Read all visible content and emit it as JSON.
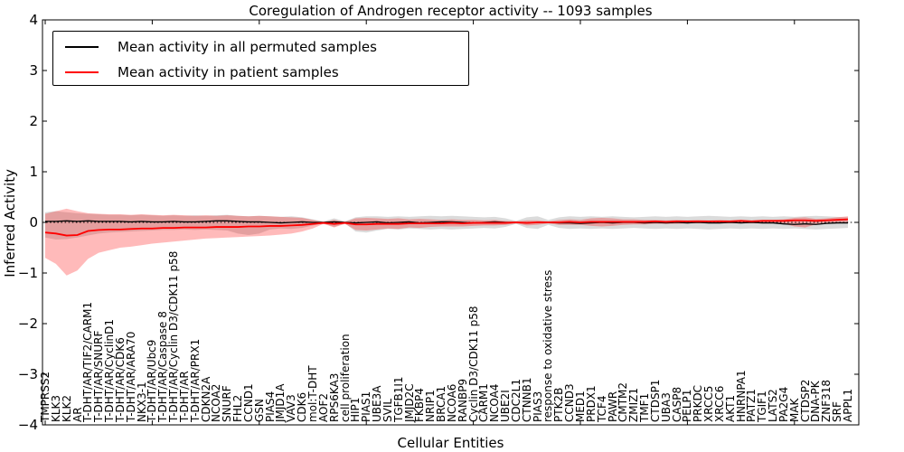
{
  "figure": {
    "title": "Coregulation of Androgen receptor activity -- 1093 samples",
    "xlabel": "Cellular Entities",
    "ylabel": "Inferred Activity",
    "legend": [
      {
        "label": "Mean activity in all permuted samples",
        "color": "#000000"
      },
      {
        "label": "Mean activity in patient samples",
        "color": "#ff0000"
      }
    ]
  },
  "chart_data": {
    "type": "line",
    "title": "Coregulation of Androgen receptor activity -- 1093 samples",
    "xlabel": "Cellular Entities",
    "ylabel": "Inferred Activity",
    "ylim": [
      -4,
      4
    ],
    "yticks": [
      "4",
      "3",
      "2",
      "1",
      "0",
      "−1",
      "−2",
      "−3",
      "−4"
    ],
    "grid": false,
    "legend_position": "upper left",
    "zero_reference_line": true,
    "categories": [
      "TMPRSS2",
      "KLK3",
      "KLK2",
      "AR",
      "T-DHT/AR/TIF2/CARM1",
      "T-DHT/AR/SNURF",
      "T-DHT/AR/CyclinD1",
      "T-DHT/AR/CDK6",
      "T-DHT/AR/ARA70",
      "NKX3-1",
      "T-DHT/AR/Ubc9",
      "T-DHT/AR/Caspase 8",
      "T-DHT/AR/Cyclin D3/CDK11 p58",
      "T-DHT/AR",
      "T-DHT/AR/PRX1",
      "CDKN2A",
      "NCOA2",
      "SNURF",
      "FHL2",
      "CCND1",
      "GSN",
      "PIAS4",
      "JMJD1A",
      "VAV3",
      "CDK6",
      "mol:T-DHT",
      "AOF2",
      "RPS6KA3",
      "cell proliferation",
      "HIP1",
      "PIAS1",
      "UBE3A",
      "SVIL",
      "TGFB1I1",
      "JMJD2C",
      "FKBP4",
      "NRIP1",
      "BRCA1",
      "NCOA6",
      "RANBP9",
      "Cyclin D3/CDK11 p58",
      "CARM1",
      "NCOA4",
      "UBE2I",
      "CDC2L1",
      "CTNNB1",
      "PIAS3",
      "response to oxidative stress",
      "PTK2B",
      "CCND3",
      "MED1",
      "PRDX1",
      "TCF4",
      "PAWR",
      "CMTM2",
      "ZMIZ1",
      "TMF1",
      "CTDSP1",
      "UBA3",
      "CASP8",
      "PELP1",
      "PRKDC",
      "XRCC5",
      "XRCC6",
      "AKT1",
      "HNRNPA1",
      "PATZ1",
      "TGIF1",
      "LATS2",
      "PA2G4",
      "MAK",
      "CTDSP2",
      "DNA-PK",
      "ZNF318",
      "SRF",
      "APPL1"
    ],
    "series": [
      {
        "name": "Mean activity in all permuted samples",
        "color": "#000000",
        "values": [
          0.02,
          0.02,
          0.03,
          0.02,
          0.03,
          0.02,
          0.02,
          0.02,
          0.01,
          0.02,
          0.01,
          0.01,
          0.02,
          0.01,
          0.01,
          0.02,
          0.03,
          0.03,
          0.02,
          0.01,
          0.01,
          0.0,
          -0.01,
          0.0,
          0.01,
          0.0,
          0.0,
          0.01,
          0.0,
          -0.01,
          0.0,
          0.01,
          -0.01,
          0.0,
          0.01,
          -0.01,
          0.0,
          0.01,
          0.01,
          0.0,
          -0.01,
          0.0,
          0.01,
          0.0,
          0.0,
          -0.01,
          0.0,
          0.0,
          -0.01,
          -0.01,
          -0.02,
          -0.01,
          0.0,
          -0.01,
          0.0,
          0.0,
          -0.01,
          0.0,
          -0.01,
          0.0,
          -0.01,
          0.0,
          -0.01,
          -0.01,
          0.0,
          -0.01,
          0.0,
          -0.01,
          -0.01,
          -0.03,
          -0.04,
          -0.03,
          -0.04,
          -0.02,
          -0.01,
          -0.01
        ]
      },
      {
        "name": "Mean activity in patient samples",
        "color": "#ff0000",
        "values": [
          -0.2,
          -0.22,
          -0.26,
          -0.25,
          -0.17,
          -0.15,
          -0.14,
          -0.14,
          -0.13,
          -0.12,
          -0.12,
          -0.11,
          -0.11,
          -0.1,
          -0.1,
          -0.1,
          -0.09,
          -0.09,
          -0.09,
          -0.08,
          -0.08,
          -0.07,
          -0.07,
          -0.06,
          -0.05,
          -0.03,
          -0.01,
          -0.03,
          -0.01,
          -0.04,
          -0.04,
          -0.03,
          -0.03,
          -0.03,
          -0.02,
          -0.02,
          -0.02,
          -0.02,
          -0.01,
          -0.02,
          -0.01,
          -0.01,
          -0.01,
          -0.01,
          0.0,
          -0.01,
          0.0,
          0.0,
          0.0,
          0.01,
          0.0,
          0.01,
          0.01,
          0.01,
          0.01,
          0.01,
          0.01,
          0.02,
          0.01,
          0.02,
          0.02,
          0.02,
          0.02,
          0.02,
          0.02,
          0.03,
          0.02,
          0.03,
          0.03,
          0.03,
          0.04,
          0.04,
          0.03,
          0.04,
          0.05,
          0.06
        ]
      }
    ],
    "bands": [
      {
        "name": "permuted samples range",
        "color": "#000000",
        "opacity": 0.14,
        "upper": [
          0.2,
          0.22,
          0.2,
          0.18,
          0.17,
          0.16,
          0.15,
          0.15,
          0.14,
          0.15,
          0.14,
          0.13,
          0.14,
          0.13,
          0.14,
          0.13,
          0.14,
          0.15,
          0.13,
          0.12,
          0.13,
          0.12,
          0.11,
          0.12,
          0.1,
          0.06,
          0.02,
          0.08,
          0.02,
          0.1,
          0.12,
          0.12,
          0.11,
          0.12,
          0.11,
          0.12,
          0.13,
          0.12,
          0.13,
          0.12,
          0.11,
          0.1,
          0.11,
          0.08,
          0.03,
          0.1,
          0.12,
          0.05,
          0.1,
          0.12,
          0.11,
          0.12,
          0.11,
          0.12,
          0.11,
          0.1,
          0.11,
          0.12,
          0.11,
          0.12,
          0.11,
          0.12,
          0.13,
          0.12,
          0.11,
          0.12,
          0.11,
          0.12,
          0.11,
          0.12,
          0.11,
          0.12,
          0.13,
          0.12,
          0.11,
          0.1
        ],
        "lower": [
          -0.3,
          -0.34,
          -0.33,
          -0.3,
          -0.26,
          -0.22,
          -0.2,
          -0.19,
          -0.18,
          -0.17,
          -0.16,
          -0.15,
          -0.15,
          -0.14,
          -0.15,
          -0.14,
          -0.15,
          -0.16,
          -0.22,
          -0.25,
          -0.22,
          -0.14,
          -0.12,
          -0.13,
          -0.11,
          -0.06,
          -0.02,
          -0.09,
          -0.02,
          -0.18,
          -0.2,
          -0.16,
          -0.13,
          -0.14,
          -0.12,
          -0.13,
          -0.14,
          -0.13,
          -0.14,
          -0.13,
          -0.12,
          -0.11,
          -0.12,
          -0.09,
          -0.03,
          -0.11,
          -0.13,
          -0.05,
          -0.11,
          -0.13,
          -0.12,
          -0.13,
          -0.12,
          -0.13,
          -0.12,
          -0.11,
          -0.12,
          -0.13,
          -0.12,
          -0.13,
          -0.12,
          -0.13,
          -0.14,
          -0.13,
          -0.12,
          -0.13,
          -0.12,
          -0.13,
          -0.12,
          -0.13,
          -0.12,
          -0.13,
          -0.14,
          -0.13,
          -0.12,
          -0.11
        ]
      },
      {
        "name": "patient samples range",
        "color": "#ff0000",
        "opacity": 0.27,
        "upper": [
          0.17,
          0.22,
          0.27,
          0.22,
          0.18,
          0.17,
          0.16,
          0.16,
          0.15,
          0.16,
          0.15,
          0.14,
          0.15,
          0.14,
          0.13,
          0.14,
          0.13,
          0.14,
          0.13,
          0.12,
          0.13,
          0.12,
          0.11,
          0.1,
          0.09,
          0.05,
          0.01,
          0.05,
          0.01,
          0.08,
          0.09,
          0.08,
          0.07,
          0.08,
          0.06,
          0.07,
          0.06,
          0.05,
          0.06,
          0.05,
          0.05,
          0.04,
          0.05,
          0.03,
          0.02,
          0.04,
          0.04,
          0.02,
          0.05,
          0.06,
          0.05,
          0.08,
          0.09,
          0.08,
          0.06,
          0.06,
          0.05,
          0.05,
          0.04,
          0.05,
          0.04,
          0.05,
          0.04,
          0.05,
          0.04,
          0.05,
          0.04,
          0.05,
          0.05,
          0.06,
          0.09,
          0.1,
          0.07,
          0.08,
          0.1,
          0.12
        ],
        "lower": [
          -0.7,
          -0.82,
          -1.05,
          -0.95,
          -0.72,
          -0.6,
          -0.55,
          -0.5,
          -0.48,
          -0.45,
          -0.42,
          -0.4,
          -0.38,
          -0.36,
          -0.34,
          -0.32,
          -0.31,
          -0.3,
          -0.29,
          -0.28,
          -0.27,
          -0.26,
          -0.24,
          -0.22,
          -0.18,
          -0.12,
          -0.03,
          -0.1,
          -0.03,
          -0.15,
          -0.16,
          -0.14,
          -0.12,
          -0.13,
          -0.1,
          -0.11,
          -0.09,
          -0.08,
          -0.08,
          -0.08,
          -0.07,
          -0.06,
          -0.06,
          -0.05,
          -0.02,
          -0.06,
          -0.05,
          -0.02,
          -0.05,
          -0.05,
          -0.05,
          -0.07,
          -0.08,
          -0.07,
          -0.05,
          -0.04,
          -0.04,
          -0.03,
          -0.03,
          -0.03,
          -0.02,
          -0.02,
          -0.02,
          -0.02,
          -0.02,
          -0.02,
          -0.02,
          -0.02,
          -0.02,
          -0.03,
          -0.08,
          -0.1,
          -0.04,
          -0.03,
          -0.02,
          -0.01
        ]
      }
    ]
  }
}
